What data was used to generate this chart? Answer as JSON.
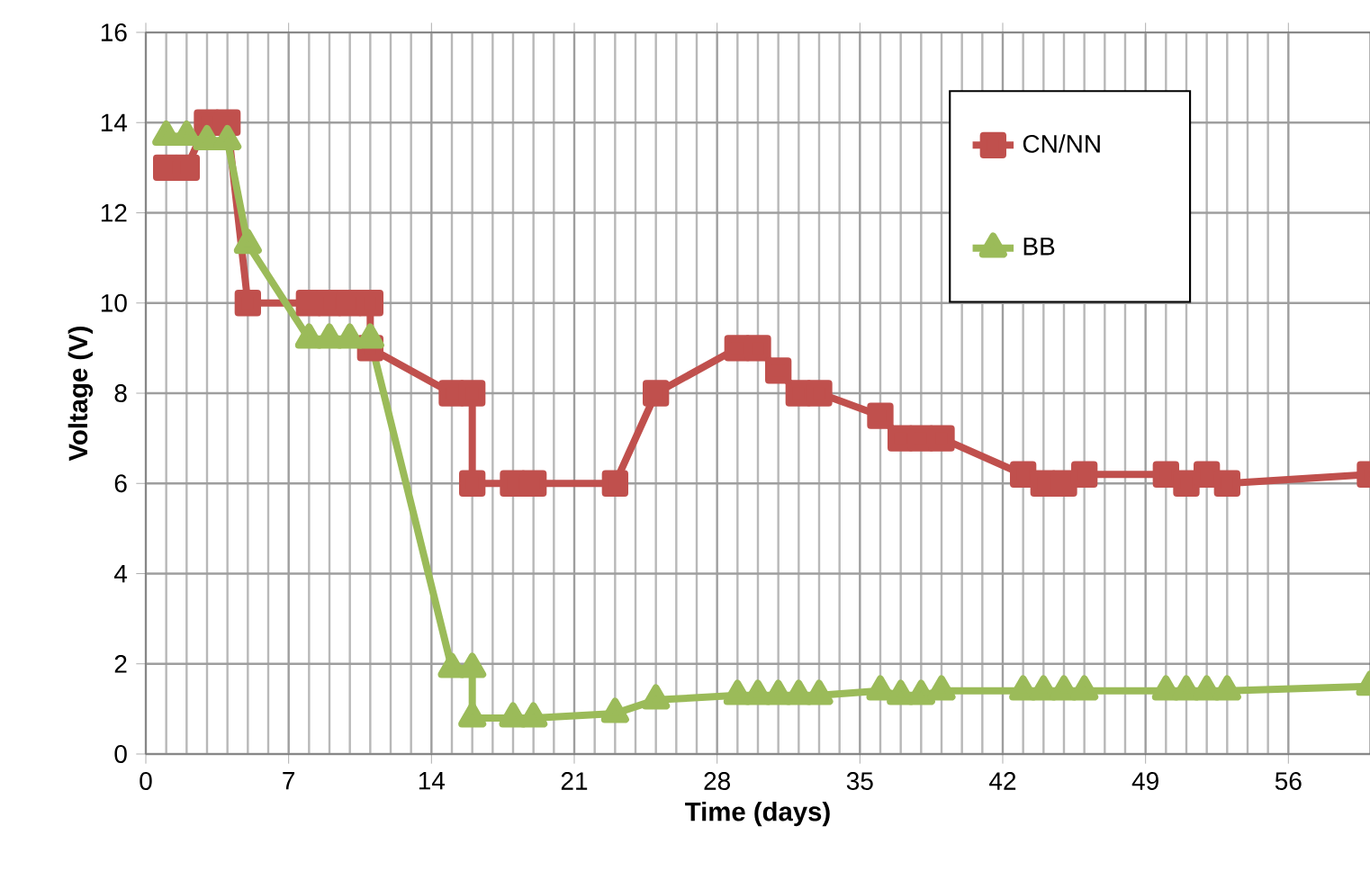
{
  "chart_data": {
    "type": "line",
    "xlabel": "Time (days)",
    "ylabel": "Voltage (V)",
    "xlim": [
      0,
      60
    ],
    "ylim": [
      0,
      16
    ],
    "xticks": [
      0,
      7,
      14,
      21,
      28,
      35,
      42,
      49,
      56
    ],
    "yticks": [
      0,
      2,
      4,
      6,
      8,
      10,
      12,
      14,
      16
    ],
    "grid": true,
    "legend": "top right",
    "series": [
      {
        "name": "CN/NN",
        "color": "#c0504d",
        "marker": "square",
        "x": [
          1,
          2,
          3,
          4,
          5,
          8,
          9,
          10,
          11,
          11,
          15,
          16,
          16,
          18,
          19,
          23,
          25,
          29,
          30,
          31,
          32,
          33,
          36,
          37,
          38,
          39,
          43,
          44,
          45,
          46,
          50,
          51,
          52,
          53,
          60
        ],
        "values": [
          13,
          13,
          14,
          14,
          10,
          10,
          10,
          10,
          10,
          9,
          8,
          8,
          6,
          6,
          6,
          6,
          8,
          9,
          9,
          8.5,
          8,
          8,
          7.5,
          7,
          7,
          7,
          6.2,
          6,
          6,
          6.2,
          6.2,
          6,
          6.2,
          6,
          6.2
        ]
      },
      {
        "name": "BB",
        "color": "#9bbb59",
        "marker": "triangle",
        "x": [
          1,
          2,
          3,
          4,
          5,
          8,
          9,
          10,
          11,
          15,
          16,
          16,
          18,
          19,
          23,
          25,
          29,
          30,
          31,
          32,
          33,
          36,
          37,
          38,
          39,
          43,
          44,
          45,
          46,
          50,
          51,
          52,
          53,
          60
        ],
        "values": [
          13.7,
          13.7,
          13.6,
          13.6,
          11.3,
          9.2,
          9.2,
          9.2,
          9.2,
          1.9,
          1.9,
          0.8,
          0.8,
          0.8,
          0.9,
          1.2,
          1.3,
          1.3,
          1.3,
          1.3,
          1.3,
          1.4,
          1.3,
          1.3,
          1.4,
          1.4,
          1.4,
          1.4,
          1.4,
          1.4,
          1.4,
          1.4,
          1.4,
          1.5
        ]
      }
    ]
  }
}
